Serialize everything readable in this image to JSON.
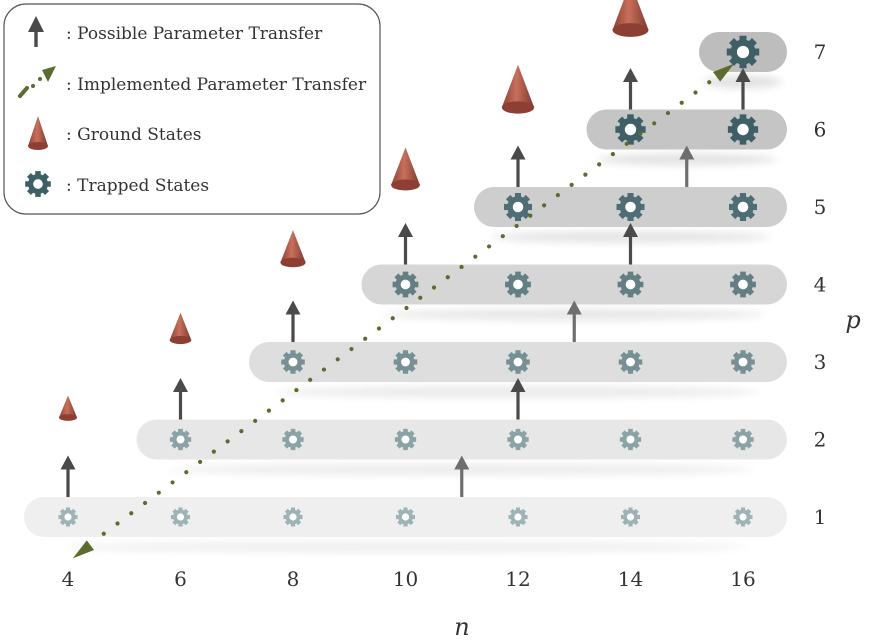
{
  "legend": {
    "items": [
      {
        "icon": "dark-arrow-icon",
        "text": ":  Possible Parameter Transfer"
      },
      {
        "icon": "dotted-arrow-icon",
        "text": ":  Implemented Parameter Transfer"
      },
      {
        "icon": "cone-icon",
        "text": ":  Ground States"
      },
      {
        "icon": "gear-icon",
        "text": ":  Trapped States"
      }
    ]
  },
  "axes": {
    "x_label": "n",
    "y_label": "p",
    "x_ticks": [
      "4",
      "6",
      "8",
      "10",
      "12",
      "14",
      "16",
      "···"
    ],
    "y_ticks": [
      "1",
      "2",
      "3",
      "4",
      "5",
      "6",
      "7"
    ]
  },
  "grid": {
    "n_values": [
      4,
      6,
      8,
      10,
      12,
      14,
      16
    ],
    "p_values": [
      1,
      2,
      3,
      4,
      5,
      6,
      7
    ],
    "rows": [
      {
        "p": 1,
        "n_start": 4,
        "n_end": 16
      },
      {
        "p": 2,
        "n_start": 6,
        "n_end": 16
      },
      {
        "p": 3,
        "n_start": 8,
        "n_end": 16
      },
      {
        "p": 4,
        "n_start": 10,
        "n_end": 16
      },
      {
        "p": 5,
        "n_start": 12,
        "n_end": 16
      },
      {
        "p": 6,
        "n_start": 14,
        "n_end": 16
      },
      {
        "p": 7,
        "n_start": 16,
        "n_end": 16
      }
    ],
    "ground_states": [
      {
        "n": 4,
        "p": 1
      },
      {
        "n": 6,
        "p": 2
      },
      {
        "n": 8,
        "p": 3
      },
      {
        "n": 10,
        "p": 4
      },
      {
        "n": 12,
        "p": 5
      },
      {
        "n": 14,
        "p": 6
      }
    ],
    "transfer_arrows": [
      {
        "n": 4,
        "from_p": 1
      },
      {
        "n": 6,
        "from_p": 2
      },
      {
        "n": 8,
        "from_p": 3
      },
      {
        "n": 10,
        "from_p": 4
      },
      {
        "n": 12,
        "from_p": 5
      },
      {
        "n": 14,
        "from_p": 6
      },
      {
        "n": 16,
        "from_p": 6
      },
      {
        "n": 11,
        "from_p": 1
      },
      {
        "n": 12,
        "from_p": 2
      },
      {
        "n": 13,
        "from_p": 3
      },
      {
        "n": 14,
        "from_p": 4
      },
      {
        "n": 15,
        "from_p": 5
      }
    ],
    "implemented_transfer": {
      "from": {
        "n": 4,
        "p": 1
      },
      "to": {
        "n": 16,
        "p": 7
      }
    }
  },
  "colors": {
    "gear_light": "#9fb3b7",
    "gear_dark": "#3f5f66",
    "cone": "#b85a48",
    "arrow": "#4a4a4a",
    "dotted": "#5c6b2e",
    "row_light": "#efefef",
    "row_dark": "#bdbdbd"
  }
}
